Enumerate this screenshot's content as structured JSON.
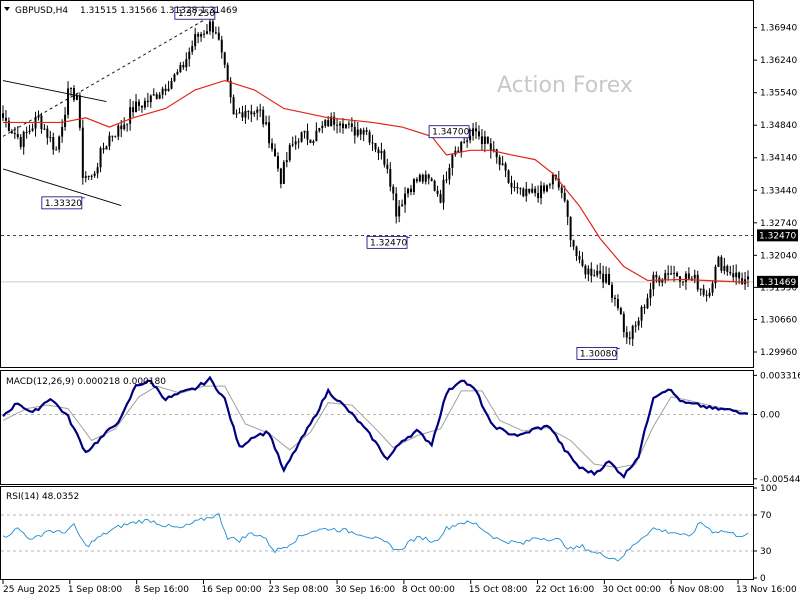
{
  "header": {
    "symbol": "GBPUSD,H4",
    "ohlc": "1.31515 1.31566 1.31328 1.31469"
  },
  "watermark": "Action Forex",
  "colors": {
    "candle": "#000000",
    "ma": "#e3261c",
    "macd_main": "#000080",
    "macd_signal": "#a0a0a0",
    "rsi": "#1e8cd2",
    "grid": "#a0a0a0",
    "label_border": "#000080",
    "price_tag_bg": "#000000"
  },
  "chart_data": [
    {
      "type": "candlestick",
      "panel": "price",
      "ylim": [
        1.2968,
        1.3747
      ],
      "y_ticks": [
        "1.36940",
        "1.36240",
        "1.35540",
        "1.34840",
        "1.34140",
        "1.33440",
        "1.32740",
        "1.32040",
        "1.31350",
        "1.30660",
        "1.29960"
      ],
      "x_ticks": [
        "25 Aug 2025",
        "1 Sep 08:00",
        "8 Sep 16:00",
        "16 Sep 00:00",
        "23 Sep 08:00",
        "30 Sep 16:00",
        "8 Oct 00:00",
        "15 Oct 08:00",
        "22 Oct 16:00",
        "30 Oct 00:00",
        "6 Nov 08:00",
        "13 Nov 16:00"
      ],
      "price_path": [
        [
          0,
          1.35
        ],
        [
          6,
          1.345
        ],
        [
          12,
          1.35
        ],
        [
          18,
          1.343
        ],
        [
          22,
          1.355
        ],
        [
          25,
          1.355
        ],
        [
          27,
          1.338
        ],
        [
          30,
          1.337
        ],
        [
          33,
          1.342
        ],
        [
          36,
          1.346
        ],
        [
          40,
          1.348
        ],
        [
          44,
          1.352
        ],
        [
          50,
          1.354
        ],
        [
          55,
          1.357
        ],
        [
          60,
          1.36
        ],
        [
          65,
          1.367
        ],
        [
          70,
          1.37
        ],
        [
          72,
          1.369
        ],
        [
          75,
          1.36
        ],
        [
          78,
          1.35
        ],
        [
          82,
          1.352
        ],
        [
          87,
          1.351
        ],
        [
          90,
          1.346
        ],
        [
          94,
          1.337
        ],
        [
          97,
          1.343
        ],
        [
          100,
          1.346
        ],
        [
          105,
          1.346
        ],
        [
          110,
          1.349
        ],
        [
          114,
          1.35
        ],
        [
          118,
          1.347
        ],
        [
          122,
          1.348
        ],
        [
          126,
          1.344
        ],
        [
          130,
          1.34
        ],
        [
          133,
          1.33
        ],
        [
          137,
          1.335
        ],
        [
          141,
          1.337
        ],
        [
          145,
          1.336
        ],
        [
          148,
          1.333
        ],
        [
          152,
          1.343
        ],
        [
          156,
          1.345
        ],
        [
          160,
          1.347
        ],
        [
          164,
          1.344
        ],
        [
          168,
          1.34
        ],
        [
          172,
          1.335
        ],
        [
          176,
          1.333
        ],
        [
          180,
          1.334
        ],
        [
          183,
          1.334
        ],
        [
          186,
          1.337
        ],
        [
          189,
          1.334
        ],
        [
          192,
          1.325
        ],
        [
          195,
          1.318
        ],
        [
          198,
          1.317
        ],
        [
          202,
          1.317
        ],
        [
          205,
          1.314
        ],
        [
          208,
          1.31
        ],
        [
          211,
          1.302
        ],
        [
          214,
          1.305
        ],
        [
          217,
          1.31
        ],
        [
          220,
          1.315
        ],
        [
          225,
          1.317
        ],
        [
          230,
          1.316
        ],
        [
          234,
          1.315
        ],
        [
          238,
          1.312
        ],
        [
          242,
          1.319
        ],
        [
          246,
          1.317
        ],
        [
          250,
          1.315
        ],
        [
          252,
          1.3147
        ]
      ],
      "ma_path": [
        [
          0,
          1.349
        ],
        [
          20,
          1.349
        ],
        [
          28,
          1.35
        ],
        [
          36,
          1.348
        ],
        [
          44,
          1.35
        ],
        [
          55,
          1.352
        ],
        [
          65,
          1.356
        ],
        [
          75,
          1.358
        ],
        [
          85,
          1.356
        ],
        [
          95,
          1.352
        ],
        [
          110,
          1.35
        ],
        [
          125,
          1.349
        ],
        [
          135,
          1.348
        ],
        [
          145,
          1.346
        ],
        [
          150,
          1.342
        ],
        [
          158,
          1.343
        ],
        [
          165,
          1.343
        ],
        [
          172,
          1.342
        ],
        [
          180,
          1.341
        ],
        [
          186,
          1.338
        ],
        [
          195,
          1.331
        ],
        [
          202,
          1.324
        ],
        [
          210,
          1.318
        ],
        [
          218,
          1.315
        ],
        [
          230,
          1.3152
        ],
        [
          245,
          1.3148
        ],
        [
          252,
          1.3146
        ]
      ],
      "series": [
        {
          "name": "GBPUSD,H4"
        }
      ],
      "annotations": [
        {
          "label": "1.37250",
          "bar": 72,
          "price": 1.3725
        },
        {
          "label": "1.33320",
          "bar": 27,
          "price": 1.3332
        },
        {
          "label": "1.34700",
          "bar": 158,
          "price": 1.347
        },
        {
          "label": "1.32470",
          "bar": 137,
          "price": 1.3247
        },
        {
          "label": "1.30080",
          "bar": 208,
          "price": 1.3008
        }
      ],
      "hline": {
        "value": 1.3247,
        "label": "1.32470"
      },
      "current_price": {
        "value": 1.31469,
        "label": "1.31469"
      },
      "trendlines": [
        {
          "style": "solid",
          "from": [
            0,
            1.358
          ],
          "to": [
            35,
            1.3535
          ]
        },
        {
          "style": "solid",
          "from": [
            0,
            1.339
          ],
          "to": [
            40,
            1.3311
          ]
        },
        {
          "style": "dashed",
          "from": [
            0,
            1.346
          ],
          "to": [
            72,
            1.3725
          ]
        }
      ]
    },
    {
      "type": "line",
      "panel": "macd",
      "title": "MACD(12,26,9) 0.000218 0.000180",
      "ylim": [
        -0.0058,
        0.0036
      ],
      "y_ticks": [
        "0.003316",
        "0.00",
        "-0.005445"
      ],
      "macd_main_path": [
        [
          0,
          -0.0001
        ],
        [
          5,
          0.001
        ],
        [
          10,
          0.0001
        ],
        [
          16,
          0.0014
        ],
        [
          22,
          -0.0002
        ],
        [
          28,
          -0.0032
        ],
        [
          34,
          -0.0018
        ],
        [
          40,
          -0.0003
        ],
        [
          45,
          0.0025
        ],
        [
          50,
          0.0028
        ],
        [
          55,
          0.0013
        ],
        [
          60,
          0.0018
        ],
        [
          65,
          0.0022
        ],
        [
          70,
          0.003
        ],
        [
          75,
          0.0013
        ],
        [
          80,
          -0.0028
        ],
        [
          85,
          -0.0018
        ],
        [
          90,
          -0.0015
        ],
        [
          95,
          -0.0048
        ],
        [
          100,
          -0.0025
        ],
        [
          105,
          -0.0004
        ],
        [
          110,
          0.002
        ],
        [
          115,
          0.0008
        ],
        [
          120,
          -0.0005
        ],
        [
          125,
          -0.002
        ],
        [
          130,
          -0.0038
        ],
        [
          135,
          -0.0022
        ],
        [
          140,
          -0.0014
        ],
        [
          145,
          -0.0025
        ],
        [
          150,
          0.0018
        ],
        [
          155,
          0.003
        ],
        [
          160,
          0.002
        ],
        [
          165,
          -0.0008
        ],
        [
          170,
          -0.0015
        ],
        [
          175,
          -0.0018
        ],
        [
          180,
          -0.0012
        ],
        [
          185,
          -0.001
        ],
        [
          190,
          -0.003
        ],
        [
          195,
          -0.0045
        ],
        [
          200,
          -0.005
        ],
        [
          205,
          -0.004
        ],
        [
          210,
          -0.0052
        ],
        [
          215,
          -0.0035
        ],
        [
          220,
          0.0015
        ],
        [
          225,
          0.0022
        ],
        [
          230,
          0.001
        ],
        [
          235,
          0.0008
        ],
        [
          240,
          0.0005
        ],
        [
          245,
          0.0004
        ],
        [
          250,
          0.0002
        ]
      ],
      "macd_signal_path": [
        [
          0,
          -0.0005
        ],
        [
          8,
          0.0005
        ],
        [
          15,
          0.0008
        ],
        [
          22,
          0.0005
        ],
        [
          30,
          -0.0022
        ],
        [
          38,
          -0.0012
        ],
        [
          46,
          0.0015
        ],
        [
          52,
          0.0024
        ],
        [
          60,
          0.0018
        ],
        [
          68,
          0.0024
        ],
        [
          75,
          0.0024
        ],
        [
          82,
          -0.0008
        ],
        [
          90,
          -0.0016
        ],
        [
          97,
          -0.003
        ],
        [
          104,
          -0.0015
        ],
        [
          110,
          0.001
        ],
        [
          118,
          0.0008
        ],
        [
          126,
          -0.0012
        ],
        [
          132,
          -0.0028
        ],
        [
          140,
          -0.0018
        ],
        [
          148,
          -0.0012
        ],
        [
          155,
          0.002
        ],
        [
          162,
          0.002
        ],
        [
          168,
          -0.0005
        ],
        [
          176,
          -0.0014
        ],
        [
          184,
          -0.0011
        ],
        [
          192,
          -0.0022
        ],
        [
          200,
          -0.0042
        ],
        [
          208,
          -0.0045
        ],
        [
          214,
          -0.0042
        ],
        [
          220,
          -0.001
        ],
        [
          226,
          0.0015
        ],
        [
          232,
          0.0012
        ],
        [
          240,
          0.0007
        ],
        [
          250,
          0.0003
        ]
      ]
    },
    {
      "type": "line",
      "panel": "rsi",
      "title": "RSI(14) 48.0352",
      "ylim": [
        0,
        100
      ],
      "y_ticks": [
        "100",
        "70",
        "30",
        "0"
      ],
      "levels": [
        70,
        30
      ],
      "rsi_path": [
        [
          0,
          45
        ],
        [
          5,
          55
        ],
        [
          10,
          42
        ],
        [
          15,
          53
        ],
        [
          20,
          50
        ],
        [
          24,
          58
        ],
        [
          28,
          35
        ],
        [
          32,
          44
        ],
        [
          36,
          52
        ],
        [
          40,
          58
        ],
        [
          46,
          63
        ],
        [
          50,
          64
        ],
        [
          55,
          58
        ],
        [
          60,
          55
        ],
        [
          65,
          62
        ],
        [
          70,
          68
        ],
        [
          73,
          70
        ],
        [
          76,
          45
        ],
        [
          80,
          42
        ],
        [
          84,
          50
        ],
        [
          88,
          46
        ],
        [
          92,
          30
        ],
        [
          96,
          36
        ],
        [
          100,
          45
        ],
        [
          104,
          52
        ],
        [
          110,
          55
        ],
        [
          115,
          53
        ],
        [
          120,
          50
        ],
        [
          125,
          45
        ],
        [
          130,
          38
        ],
        [
          134,
          30
        ],
        [
          138,
          42
        ],
        [
          142,
          45
        ],
        [
          146,
          40
        ],
        [
          150,
          55
        ],
        [
          155,
          62
        ],
        [
          160,
          60
        ],
        [
          164,
          50
        ],
        [
          168,
          42
        ],
        [
          172,
          40
        ],
        [
          176,
          38
        ],
        [
          180,
          45
        ],
        [
          184,
          44
        ],
        [
          188,
          42
        ],
        [
          192,
          32
        ],
        [
          196,
          35
        ],
        [
          200,
          28
        ],
        [
          204,
          25
        ],
        [
          208,
          20
        ],
        [
          212,
          32
        ],
        [
          216,
          45
        ],
        [
          220,
          55
        ],
        [
          224,
          52
        ],
        [
          228,
          50
        ],
        [
          232,
          45
        ],
        [
          236,
          62
        ],
        [
          240,
          52
        ],
        [
          244,
          52
        ],
        [
          248,
          48
        ],
        [
          252,
          48
        ]
      ]
    }
  ]
}
